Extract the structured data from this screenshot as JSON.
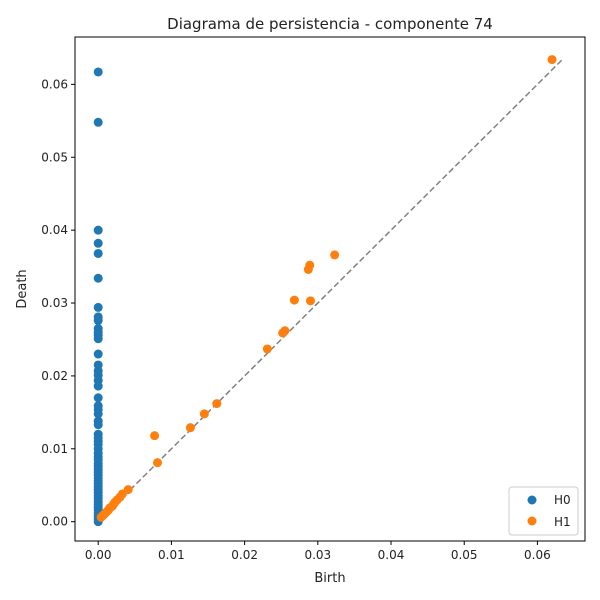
{
  "chart_data": {
    "type": "scatter",
    "title": "Diagrama de persistencia - componente 74",
    "xlabel": "Birth",
    "ylabel": "Death",
    "xlim": [
      -0.00317,
      0.0665
    ],
    "ylim": [
      -0.00265,
      0.0665
    ],
    "x_ticks": [
      0.0,
      0.01,
      0.02,
      0.03,
      0.04,
      0.05,
      0.06
    ],
    "x_tick_labels": [
      "0.00",
      "0.01",
      "0.02",
      "0.03",
      "0.04",
      "0.05",
      "0.06"
    ],
    "y_ticks": [
      0.0,
      0.01,
      0.02,
      0.03,
      0.04,
      0.05,
      0.06
    ],
    "y_tick_labels": [
      "0.00",
      "0.01",
      "0.02",
      "0.03",
      "0.04",
      "0.05",
      "0.06"
    ],
    "grid": false,
    "legend_position": "lower-right",
    "diagonal": {
      "from": [
        0.0,
        0.0
      ],
      "to": [
        0.0635,
        0.0635
      ],
      "color": "#808080",
      "style": "dashed"
    },
    "series": [
      {
        "name": "H0",
        "color": "#1f77b4",
        "points": [
          [
            0,
            0.0617
          ],
          [
            0,
            0.0548
          ],
          [
            0,
            0.04
          ],
          [
            0,
            0.0382
          ],
          [
            0,
            0.0368
          ],
          [
            0,
            0.0334
          ],
          [
            0,
            0.0294
          ],
          [
            0,
            0.0281
          ],
          [
            0,
            0.0276
          ],
          [
            0,
            0.0265
          ],
          [
            0,
            0.026
          ],
          [
            0,
            0.0256
          ],
          [
            0,
            0.0251
          ],
          [
            0,
            0.023
          ],
          [
            0,
            0.0215
          ],
          [
            0,
            0.0207
          ],
          [
            0,
            0.0201
          ],
          [
            0,
            0.0194
          ],
          [
            0,
            0.0186
          ],
          [
            0,
            0.017
          ],
          [
            0,
            0.0159
          ],
          [
            0,
            0.0154
          ],
          [
            0,
            0.0148
          ],
          [
            0,
            0.0138
          ],
          [
            0,
            0.0133
          ],
          [
            0,
            0.012
          ],
          [
            0,
            0.0115
          ],
          [
            0,
            0.011
          ],
          [
            0,
            0.0106
          ],
          [
            0,
            0.01
          ],
          [
            0,
            0.0094
          ],
          [
            0,
            0.0089
          ],
          [
            0,
            0.0085
          ],
          [
            0,
            0.008
          ],
          [
            0,
            0.0076
          ],
          [
            0,
            0.0072
          ],
          [
            0,
            0.0068
          ],
          [
            0,
            0.0064
          ],
          [
            0,
            0.006
          ],
          [
            0,
            0.0056
          ],
          [
            0,
            0.0052
          ],
          [
            0,
            0.0048
          ],
          [
            0,
            0.0044
          ],
          [
            0,
            0.004
          ],
          [
            0,
            0.0036
          ],
          [
            0,
            0.0032
          ],
          [
            0,
            0.0028
          ],
          [
            0,
            0.0024
          ],
          [
            0,
            0.002
          ],
          [
            0,
            0.0016
          ],
          [
            0,
            0.0012
          ],
          [
            0,
            0.0008
          ],
          [
            0,
            0.0004
          ],
          [
            0,
            0.0
          ]
        ]
      },
      {
        "name": "H1",
        "color": "#ff7f0e",
        "points": [
          [
            0.062,
            0.0634
          ],
          [
            0.0323,
            0.0366
          ],
          [
            0.0289,
            0.0352
          ],
          [
            0.0287,
            0.0346
          ],
          [
            0.0268,
            0.0304
          ],
          [
            0.029,
            0.0303
          ],
          [
            0.0255,
            0.0262
          ],
          [
            0.0252,
            0.0259
          ],
          [
            0.0231,
            0.0237
          ],
          [
            0.0162,
            0.0162
          ],
          [
            0.0145,
            0.0148
          ],
          [
            0.0126,
            0.0129
          ],
          [
            0.0077,
            0.0118
          ],
          [
            0.0081,
            0.0081
          ],
          [
            0.0041,
            0.0044
          ],
          [
            0.0033,
            0.0038
          ],
          [
            0.003,
            0.0034
          ],
          [
            0.0026,
            0.003
          ],
          [
            0.0023,
            0.0027
          ],
          [
            0.0021,
            0.0024
          ],
          [
            0.0019,
            0.0021
          ],
          [
            0.0016,
            0.0019
          ],
          [
            0.0014,
            0.0016
          ],
          [
            0.0012,
            0.0014
          ],
          [
            0.001,
            0.0012
          ],
          [
            0.0008,
            0.001
          ],
          [
            0.0006,
            0.0008
          ],
          [
            0.0004,
            0.0006
          ]
        ]
      }
    ]
  }
}
